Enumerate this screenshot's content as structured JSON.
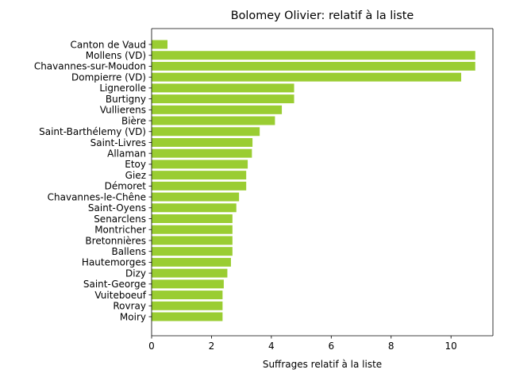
{
  "chart_data": {
    "type": "bar",
    "orientation": "horizontal",
    "title": "Bolomey Olivier: relatif à la liste",
    "xlabel": "Suffrages relatif à la liste",
    "ylabel": "",
    "xlim": [
      0,
      11.4
    ],
    "xticks": [
      0,
      2,
      4,
      6,
      8,
      10
    ],
    "bar_color": "#9acd32",
    "grid": false,
    "categories": [
      "Canton de Vaud",
      "Mollens (VD)",
      "Chavannes-sur-Moudon",
      "Dompierre (VD)",
      "Lignerolle",
      "Burtigny",
      "Vullierens",
      "Bière",
      "Saint-Barthélemy (VD)",
      "Saint-Livres",
      "Allaman",
      "Etoy",
      "Giez",
      "Démoret",
      "Chavannes-le-Chêne",
      "Saint-Oyens",
      "Senarclens",
      "Montricher",
      "Bretonnières",
      "Ballens",
      "Hautemorges",
      "Dizy",
      "Saint-George",
      "Vuiteboeuf",
      "Rovray",
      "Moiry"
    ],
    "values": [
      0.53,
      10.81,
      10.81,
      10.34,
      4.76,
      4.76,
      4.35,
      4.12,
      3.61,
      3.37,
      3.35,
      3.21,
      3.16,
      3.16,
      2.92,
      2.83,
      2.7,
      2.7,
      2.7,
      2.7,
      2.65,
      2.53,
      2.41,
      2.37,
      2.37,
      2.37
    ]
  }
}
